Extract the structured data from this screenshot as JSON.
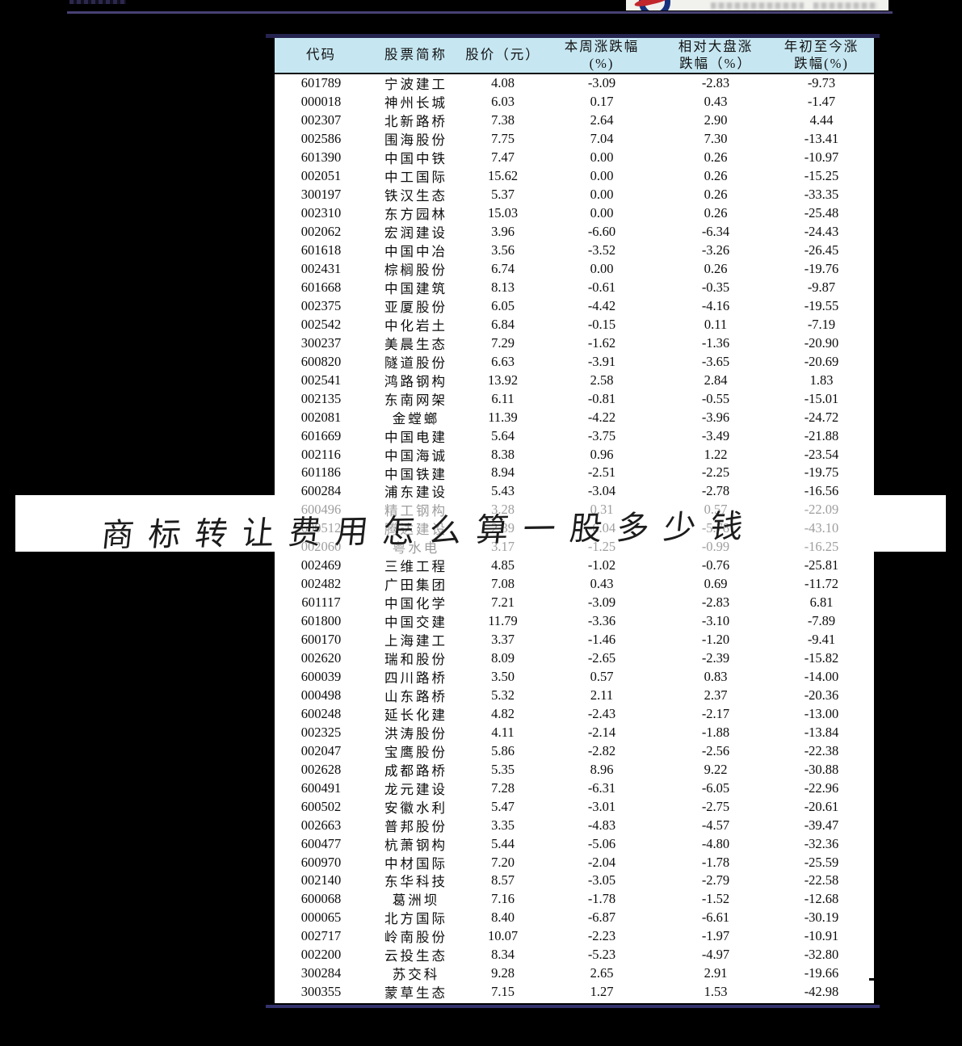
{
  "page": {
    "watermark": "商标转让费用怎么算一股多少钱"
  },
  "colors": {
    "header_bg": "#c6e7f2",
    "rule_navy": "#2b2962",
    "muted_text": "#9e9e9e",
    "logo_blue": "#15317d",
    "logo_red": "#c1272d"
  },
  "table": {
    "headers": [
      {
        "lines": [
          "代码"
        ]
      },
      {
        "lines": [
          "股票简称"
        ]
      },
      {
        "lines": [
          "股价（元）"
        ]
      },
      {
        "lines": [
          "本周涨跌幅",
          "(%)"
        ]
      },
      {
        "lines": [
          "相对大盘涨",
          "跌幅（%）"
        ]
      },
      {
        "lines": [
          "年初至今涨",
          "跌幅(%)"
        ]
      }
    ],
    "rows": [
      {
        "code": "601789",
        "name": "宁波建工",
        "price": "4.08",
        "week": "-3.09",
        "rel": "-2.83",
        "ytd": "-9.73",
        "muted": false
      },
      {
        "code": "000018",
        "name": "神州长城",
        "price": "6.03",
        "week": "0.17",
        "rel": "0.43",
        "ytd": "-1.47",
        "muted": false
      },
      {
        "code": "002307",
        "name": "北新路桥",
        "price": "7.38",
        "week": "2.64",
        "rel": "2.90",
        "ytd": "4.44",
        "muted": false
      },
      {
        "code": "002586",
        "name": "围海股份",
        "price": "7.75",
        "week": "7.04",
        "rel": "7.30",
        "ytd": "-13.41",
        "muted": false
      },
      {
        "code": "601390",
        "name": "中国中铁",
        "price": "7.47",
        "week": "0.00",
        "rel": "0.26",
        "ytd": "-10.97",
        "muted": false
      },
      {
        "code": "002051",
        "name": "中工国际",
        "price": "15.62",
        "week": "0.00",
        "rel": "0.26",
        "ytd": "-15.25",
        "muted": false
      },
      {
        "code": "300197",
        "name": "铁汉生态",
        "price": "5.37",
        "week": "0.00",
        "rel": "0.26",
        "ytd": "-33.35",
        "muted": false
      },
      {
        "code": "002310",
        "name": "东方园林",
        "price": "15.03",
        "week": "0.00",
        "rel": "0.26",
        "ytd": "-25.48",
        "muted": false
      },
      {
        "code": "002062",
        "name": "宏润建设",
        "price": "3.96",
        "week": "-6.60",
        "rel": "-6.34",
        "ytd": "-24.43",
        "muted": false
      },
      {
        "code": "601618",
        "name": "中国中冶",
        "price": "3.56",
        "week": "-3.52",
        "rel": "-3.26",
        "ytd": "-26.45",
        "muted": false
      },
      {
        "code": "002431",
        "name": "棕榈股份",
        "price": "6.74",
        "week": "0.00",
        "rel": "0.26",
        "ytd": "-19.76",
        "muted": false
      },
      {
        "code": "601668",
        "name": "中国建筑",
        "price": "8.13",
        "week": "-0.61",
        "rel": "-0.35",
        "ytd": "-9.87",
        "muted": false
      },
      {
        "code": "002375",
        "name": "亚厦股份",
        "price": "6.05",
        "week": "-4.42",
        "rel": "-4.16",
        "ytd": "-19.55",
        "muted": false
      },
      {
        "code": "002542",
        "name": "中化岩土",
        "price": "6.84",
        "week": "-0.15",
        "rel": "0.11",
        "ytd": "-7.19",
        "muted": false
      },
      {
        "code": "300237",
        "name": "美晨生态",
        "price": "7.29",
        "week": "-1.62",
        "rel": "-1.36",
        "ytd": "-20.90",
        "muted": false
      },
      {
        "code": "600820",
        "name": "隧道股份",
        "price": "6.63",
        "week": "-3.91",
        "rel": "-3.65",
        "ytd": "-20.69",
        "muted": false
      },
      {
        "code": "002541",
        "name": "鸿路钢构",
        "price": "13.92",
        "week": "2.58",
        "rel": "2.84",
        "ytd": "1.83",
        "muted": false
      },
      {
        "code": "002135",
        "name": "东南网架",
        "price": "6.11",
        "week": "-0.81",
        "rel": "-0.55",
        "ytd": "-15.01",
        "muted": false
      },
      {
        "code": "002081",
        "name": "金螳螂",
        "price": "11.39",
        "week": "-4.22",
        "rel": "-3.96",
        "ytd": "-24.72",
        "muted": false
      },
      {
        "code": "601669",
        "name": "中国电建",
        "price": "5.64",
        "week": "-3.75",
        "rel": "-3.49",
        "ytd": "-21.88",
        "muted": false
      },
      {
        "code": "002116",
        "name": "中国海诚",
        "price": "8.38",
        "week": "0.96",
        "rel": "1.22",
        "ytd": "-23.54",
        "muted": false
      },
      {
        "code": "601186",
        "name": "中国铁建",
        "price": "8.94",
        "week": "-2.51",
        "rel": "-2.25",
        "ytd": "-19.75",
        "muted": false
      },
      {
        "code": "600284",
        "name": "浦东建设",
        "price": "5.43",
        "week": "-3.04",
        "rel": "-2.78",
        "ytd": "-16.56",
        "muted": false
      },
      {
        "code": "600496",
        "name": "精工钢构",
        "price": "3.28",
        "week": "0.31",
        "rel": "0.57",
        "ytd": "-22.09",
        "muted": true
      },
      {
        "code": "600512",
        "name": "腾达建设",
        "price": "2.39",
        "week": "-6.04",
        "rel": "-5.78",
        "ytd": "-43.10",
        "muted": true
      },
      {
        "code": "002060",
        "name": "粤水电",
        "price": "3.17",
        "week": "-1.25",
        "rel": "-0.99",
        "ytd": "-16.25",
        "muted": true
      },
      {
        "code": "002469",
        "name": "三维工程",
        "price": "4.85",
        "week": "-1.02",
        "rel": "-0.76",
        "ytd": "-25.81",
        "muted": false
      },
      {
        "code": "002482",
        "name": "广田集团",
        "price": "7.08",
        "week": "0.43",
        "rel": "0.69",
        "ytd": "-11.72",
        "muted": false
      },
      {
        "code": "601117",
        "name": "中国化学",
        "price": "7.21",
        "week": "-3.09",
        "rel": "-2.83",
        "ytd": "6.81",
        "muted": false
      },
      {
        "code": "601800",
        "name": "中国交建",
        "price": "11.79",
        "week": "-3.36",
        "rel": "-3.10",
        "ytd": "-7.89",
        "muted": false
      },
      {
        "code": "600170",
        "name": "上海建工",
        "price": "3.37",
        "week": "-1.46",
        "rel": "-1.20",
        "ytd": "-9.41",
        "muted": false
      },
      {
        "code": "002620",
        "name": "瑞和股份",
        "price": "8.09",
        "week": "-2.65",
        "rel": "-2.39",
        "ytd": "-15.82",
        "muted": false
      },
      {
        "code": "600039",
        "name": "四川路桥",
        "price": "3.50",
        "week": "0.57",
        "rel": "0.83",
        "ytd": "-14.00",
        "muted": false
      },
      {
        "code": "000498",
        "name": "山东路桥",
        "price": "5.32",
        "week": "2.11",
        "rel": "2.37",
        "ytd": "-20.36",
        "muted": false
      },
      {
        "code": "600248",
        "name": "延长化建",
        "price": "4.82",
        "week": "-2.43",
        "rel": "-2.17",
        "ytd": "-13.00",
        "muted": false
      },
      {
        "code": "002325",
        "name": "洪涛股份",
        "price": "4.11",
        "week": "-2.14",
        "rel": "-1.88",
        "ytd": "-13.84",
        "muted": false
      },
      {
        "code": "002047",
        "name": "宝鹰股份",
        "price": "5.86",
        "week": "-2.82",
        "rel": "-2.56",
        "ytd": "-22.38",
        "muted": false
      },
      {
        "code": "002628",
        "name": "成都路桥",
        "price": "5.35",
        "week": "8.96",
        "rel": "9.22",
        "ytd": "-30.88",
        "muted": false
      },
      {
        "code": "600491",
        "name": "龙元建设",
        "price": "7.28",
        "week": "-6.31",
        "rel": "-6.05",
        "ytd": "-22.96",
        "muted": false
      },
      {
        "code": "600502",
        "name": "安徽水利",
        "price": "5.47",
        "week": "-3.01",
        "rel": "-2.75",
        "ytd": "-20.61",
        "muted": false
      },
      {
        "code": "002663",
        "name": "普邦股份",
        "price": "3.35",
        "week": "-4.83",
        "rel": "-4.57",
        "ytd": "-39.47",
        "muted": false
      },
      {
        "code": "600477",
        "name": "杭萧钢构",
        "price": "5.44",
        "week": "-5.06",
        "rel": "-4.80",
        "ytd": "-32.36",
        "muted": false
      },
      {
        "code": "600970",
        "name": "中材国际",
        "price": "7.20",
        "week": "-2.04",
        "rel": "-1.78",
        "ytd": "-25.59",
        "muted": false
      },
      {
        "code": "002140",
        "name": "东华科技",
        "price": "8.57",
        "week": "-3.05",
        "rel": "-2.79",
        "ytd": "-22.58",
        "muted": false
      },
      {
        "code": "600068",
        "name": "葛洲坝",
        "price": "7.16",
        "week": "-1.78",
        "rel": "-1.52",
        "ytd": "-12.68",
        "muted": false
      },
      {
        "code": "000065",
        "name": "北方国际",
        "price": "8.40",
        "week": "-6.87",
        "rel": "-6.61",
        "ytd": "-30.19",
        "muted": false
      },
      {
        "code": "002717",
        "name": "岭南股份",
        "price": "10.07",
        "week": "-2.23",
        "rel": "-1.97",
        "ytd": "-10.91",
        "muted": false
      },
      {
        "code": "002200",
        "name": "云投生态",
        "price": "8.34",
        "week": "-5.23",
        "rel": "-4.97",
        "ytd": "-32.80",
        "muted": false
      },
      {
        "code": "300284",
        "name": "苏交科",
        "price": "9.28",
        "week": "2.65",
        "rel": "2.91",
        "ytd": "-19.66",
        "muted": false
      },
      {
        "code": "300355",
        "name": "蒙草生态",
        "price": "7.15",
        "week": "1.27",
        "rel": "1.53",
        "ytd": "-42.98",
        "muted": false
      }
    ]
  }
}
